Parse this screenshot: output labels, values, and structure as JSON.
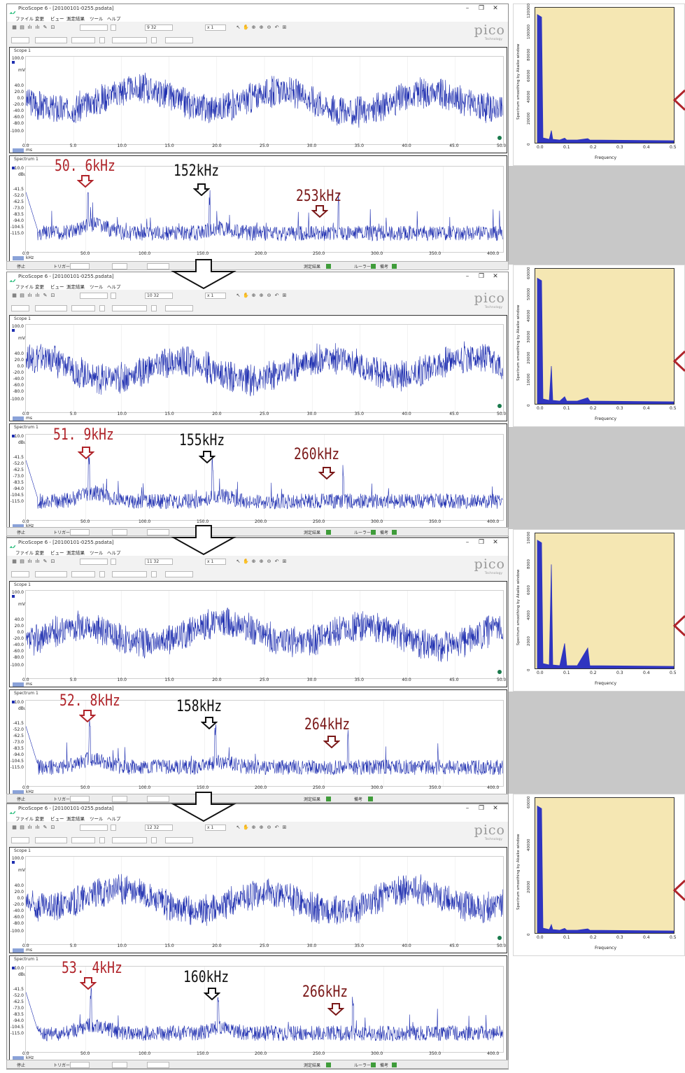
{
  "app_title": "PicoScope 6 - [20100101-0255.psdata]",
  "menu": [
    "ファイル",
    "変更",
    "ビュー",
    "測定結果",
    "ツール",
    "ヘルプ"
  ],
  "logo": "pico",
  "logo_sub": "Technology",
  "window_controls": [
    "–",
    "❐",
    "✕"
  ],
  "toolbar": {
    "zoom_value": "x 1"
  },
  "scope_panel": {
    "title": "Scope 1",
    "unit": "mV",
    "y_ticks": [
      "100.0",
      "40.0",
      "20.0",
      "0.0",
      "-20.0",
      "-40.0",
      "-60.0",
      "-80.0",
      "-100.0"
    ],
    "x_ticks": [
      "0.0",
      "5.0",
      "10.0",
      "15.0",
      "20.0",
      "25.0",
      "30.0",
      "35.0",
      "40.0",
      "45.0",
      "50.0"
    ],
    "x_unit": "ms"
  },
  "spectrum_panel": {
    "title": "Spectrum 1",
    "unit": "dBu",
    "y_ticks": [
      "10.0",
      "-41.5",
      "-52.0",
      "-62.5",
      "-73.0",
      "-83.5",
      "-94.0",
      "-104.5",
      "-115.0"
    ],
    "x_ticks": [
      "0.0",
      "50.0",
      "100.0",
      "150.0",
      "200.0",
      "250.0",
      "300.0",
      "350.0",
      "400.0"
    ],
    "x_unit": "kHz"
  },
  "statusbar": {
    "stop": "停止",
    "trigger": "トリガー",
    "results": "測定結果",
    "ruler": "ルーラー",
    "notes": "備考"
  },
  "blocks": [
    {
      "capture": "9 32",
      "annotations": {
        "peak1": "50. 6kHz",
        "peak2": "152kHz",
        "peak3": "253kHz"
      },
      "right_chart": {
        "y_ticks": [
          "0",
          "20000",
          "40000",
          "60000",
          "80000",
          "100000",
          "120000"
        ],
        "ylim": [
          0,
          120000
        ]
      }
    },
    {
      "capture": "10 32",
      "annotations": {
        "peak1": "51. 9kHz",
        "peak2": "155kHz",
        "peak3": "260kHz"
      },
      "right_chart": {
        "y_ticks": [
          "0",
          "10000",
          "20000",
          "30000",
          "40000",
          "50000",
          "60000"
        ],
        "ylim": [
          0,
          60000
        ]
      }
    },
    {
      "capture": "11 32",
      "annotations": {
        "peak1": "52. 8kHz",
        "peak2": "158kHz",
        "peak3": "264kHz"
      },
      "right_chart": {
        "y_ticks": [
          "0",
          "2000",
          "4000",
          "6000",
          "8000",
          "10000"
        ],
        "ylim": [
          0,
          10000
        ]
      }
    },
    {
      "capture": "12 32",
      "annotations": {
        "peak1": "53. 4kHz",
        "peak2": "160kHz",
        "peak3": "266kHz"
      },
      "right_chart": {
        "y_ticks": [
          "0",
          "20000",
          "40000",
          "60000"
        ],
        "ylim": [
          0,
          60000
        ]
      }
    }
  ],
  "right_chart_common": {
    "ylabel": "Spectrum smoothing by Akaike window",
    "xlabel": "Frequency",
    "x_ticks": [
      "0.0",
      "0.1",
      "0.2",
      "0.3",
      "0.4",
      "0.5"
    ]
  },
  "colors": {
    "trace": "#1f2fb0",
    "arrow_red": "#b0242a",
    "arrow_dark": "#7a1818",
    "plot_bg": "#f5e7b3"
  }
}
